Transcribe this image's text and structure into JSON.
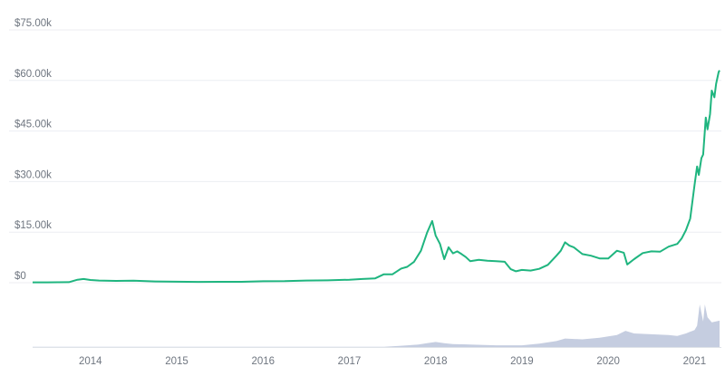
{
  "chart_data": {
    "type": "area",
    "title": "",
    "xlabel": "",
    "ylabel": "",
    "y_tick_labels": [
      "$0",
      "$15.00k",
      "$30.00k",
      "$45.00k",
      "$60.00k",
      "$75.00k"
    ],
    "y_tick_values": [
      0,
      15000,
      30000,
      45000,
      60000,
      75000
    ],
    "ylim": [
      0,
      75000
    ],
    "x_tick_labels": [
      "2014",
      "2015",
      "2016",
      "2017",
      "2018",
      "2019",
      "2020",
      "2021"
    ],
    "x_tick_values": [
      2014,
      2015,
      2016,
      2017,
      2018,
      2019,
      2020,
      2021
    ],
    "xlim": [
      2013.33,
      2021.29
    ],
    "grid": true,
    "colors": {
      "price_line": "#1fb57f",
      "volume": "#c5cde0",
      "grid": "#eceef2",
      "axis": "#dfe3e8",
      "tick_text": "#6f7680"
    },
    "series": [
      {
        "type": "line",
        "x": [
          2013.33,
          2013.5,
          2013.75,
          2013.85,
          2013.92,
          2014.0,
          2014.1,
          2014.3,
          2014.5,
          2014.75,
          2015.0,
          2015.25,
          2015.5,
          2015.75,
          2016.0,
          2016.25,
          2016.5,
          2016.75,
          2017.0,
          2017.15,
          2017.3,
          2017.4,
          2017.5,
          2017.6,
          2017.67,
          2017.75,
          2017.83,
          2017.9,
          2017.96,
          2018.0,
          2018.05,
          2018.1,
          2018.15,
          2018.2,
          2018.25,
          2018.3,
          2018.35,
          2018.4,
          2018.5,
          2018.6,
          2018.7,
          2018.8,
          2018.87,
          2018.93,
          2019.0,
          2019.1,
          2019.2,
          2019.3,
          2019.4,
          2019.45,
          2019.5,
          2019.55,
          2019.6,
          2019.7,
          2019.8,
          2019.9,
          2020.0,
          2020.1,
          2020.18,
          2020.22,
          2020.3,
          2020.4,
          2020.5,
          2020.6,
          2020.7,
          2020.8,
          2020.85,
          2020.9,
          2020.95,
          2021.0,
          2021.03,
          2021.05,
          2021.08,
          2021.1,
          2021.13,
          2021.15,
          2021.18,
          2021.2,
          2021.23,
          2021.25,
          2021.28,
          2021.29
        ],
        "y": [
          120,
          100,
          150,
          900,
          1100,
          800,
          650,
          550,
          600,
          380,
          300,
          250,
          260,
          280,
          430,
          450,
          650,
          700,
          900,
          1100,
          1300,
          2500,
          2500,
          4200,
          4700,
          6200,
          9500,
          14800,
          18300,
          14000,
          11500,
          7000,
          10500,
          8700,
          9300,
          8500,
          7600,
          6400,
          6800,
          6500,
          6400,
          6200,
          4000,
          3400,
          3800,
          3600,
          4100,
          5300,
          8000,
          9500,
          12000,
          11000,
          10500,
          8500,
          8000,
          7200,
          7200,
          9500,
          8900,
          5400,
          7000,
          8800,
          9300,
          9200,
          10700,
          11500,
          13100,
          15600,
          19000,
          29000,
          34500,
          32000,
          37000,
          38000,
          49000,
          45500,
          50000,
          57000,
          55000,
          59000,
          62500,
          63000
        ]
      },
      {
        "type": "volume",
        "x": [
          2013.33,
          2017.4,
          2017.6,
          2017.8,
          2017.9,
          2018.0,
          2018.1,
          2018.2,
          2018.4,
          2018.7,
          2019.0,
          2019.2,
          2019.4,
          2019.5,
          2019.7,
          2019.9,
          2020.1,
          2020.2,
          2020.3,
          2020.5,
          2020.7,
          2020.8,
          2020.9,
          2021.0,
          2021.03,
          2021.06,
          2021.1,
          2021.12,
          2021.15,
          2021.2,
          2021.29
        ],
        "y": [
          0.5,
          0.5,
          3,
          6,
          9,
          12,
          9,
          7,
          6,
          4,
          4,
          8,
          14,
          20,
          18,
          22,
          28,
          38,
          32,
          30,
          28,
          26,
          32,
          40,
          50,
          100,
          60,
          100,
          70,
          58,
          62
        ]
      }
    ]
  }
}
